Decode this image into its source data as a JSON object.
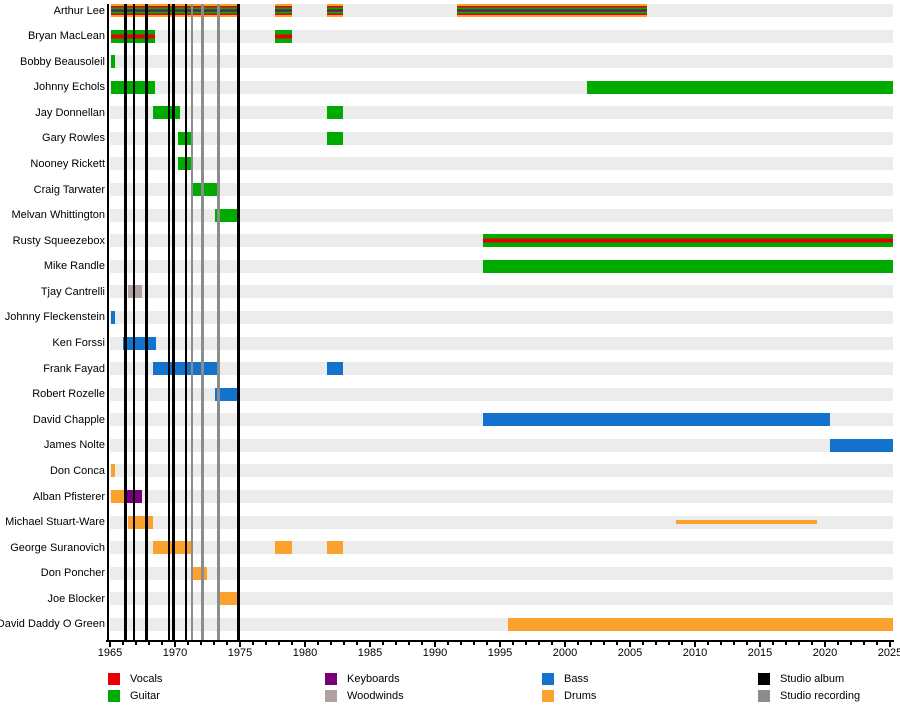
{
  "chart_data": {
    "type": "timeline",
    "description": "Band members timeline with roles as colored bars and release lines",
    "x_axis": {
      "min": 1965,
      "max": 2025.2,
      "major_tick_step": 5,
      "minor_tick_step": 1,
      "tick_labels": [
        "1965",
        "1970",
        "1975",
        "1980",
        "1985",
        "1990",
        "1995",
        "2000",
        "2005",
        "2010",
        "2015",
        "2020",
        "2025"
      ]
    },
    "members": [
      {
        "name": "Arthur Lee",
        "bars": [
          {
            "from": 1965.05,
            "to": 1975.0,
            "roles": [
              "drums",
              "vocals",
              "guitar",
              "keyboards"
            ]
          },
          {
            "from": 1977.7,
            "to": 1979.0,
            "roles": [
              "drums",
              "vocals",
              "guitar",
              "keyboards"
            ]
          },
          {
            "from": 1981.7,
            "to": 1982.9,
            "roles": [
              "drums",
              "vocals",
              "guitar",
              "keyboards"
            ]
          },
          {
            "from": 1991.7,
            "to": 2006.3,
            "roles": [
              "drums",
              "vocals",
              "guitar",
              "keyboards"
            ]
          }
        ]
      },
      {
        "name": "Bryan MacLean",
        "bars": [
          {
            "from": 1965.05,
            "to": 1968.5,
            "roles": [
              "guitar",
              "vocals"
            ]
          },
          {
            "from": 1977.7,
            "to": 1979.0,
            "roles": [
              "guitar",
              "vocals"
            ]
          }
        ]
      },
      {
        "name": "Bobby Beausoleil",
        "bars": [
          {
            "from": 1965.05,
            "to": 1965.35,
            "roles": [
              "guitar"
            ]
          }
        ]
      },
      {
        "name": "Johnny Echols",
        "bars": [
          {
            "from": 1965.05,
            "to": 1968.5,
            "roles": [
              "guitar"
            ]
          },
          {
            "from": 2001.7,
            "to": 2025.2,
            "roles": [
              "guitar"
            ]
          }
        ]
      },
      {
        "name": "Jay Donnellan",
        "bars": [
          {
            "from": 1968.3,
            "to": 1970.4,
            "roles": [
              "guitar"
            ]
          },
          {
            "from": 1981.7,
            "to": 1982.9,
            "roles": [
              "guitar"
            ]
          }
        ]
      },
      {
        "name": "Gary Rowles",
        "bars": [
          {
            "from": 1970.2,
            "to": 1971.35,
            "roles": [
              "guitar"
            ]
          },
          {
            "from": 1981.7,
            "to": 1982.9,
            "roles": [
              "guitar"
            ]
          }
        ]
      },
      {
        "name": "Nooney Rickett",
        "bars": [
          {
            "from": 1970.2,
            "to": 1971.35,
            "roles": [
              "guitar"
            ]
          }
        ]
      },
      {
        "name": "Craig Tarwater",
        "bars": [
          {
            "from": 1971.2,
            "to": 1973.2,
            "roles": [
              "guitar"
            ]
          }
        ]
      },
      {
        "name": "Melvan Whittington",
        "bars": [
          {
            "from": 1973.1,
            "to": 1975.0,
            "roles": [
              "guitar"
            ]
          }
        ]
      },
      {
        "name": "Rusty Squeezebox",
        "bars": [
          {
            "from": 1993.7,
            "to": 2025.2,
            "roles": [
              "guitar",
              "vocals"
            ]
          }
        ]
      },
      {
        "name": "Mike Randle",
        "bars": [
          {
            "from": 1993.7,
            "to": 2025.2,
            "roles": [
              "guitar"
            ]
          }
        ]
      },
      {
        "name": "Tjay Cantrelli",
        "bars": [
          {
            "from": 1966.4,
            "to": 1967.5,
            "roles": [
              "woodwinds"
            ]
          }
        ]
      },
      {
        "name": "Johnny Fleckenstein",
        "bars": [
          {
            "from": 1965.05,
            "to": 1965.35,
            "roles": [
              "bass"
            ]
          }
        ]
      },
      {
        "name": "Ken Forssi",
        "bars": [
          {
            "from": 1966.0,
            "to": 1968.5,
            "roles": [
              "bass"
            ]
          }
        ]
      },
      {
        "name": "Frank Fayad",
        "bars": [
          {
            "from": 1968.3,
            "to": 1973.2,
            "roles": [
              "bass"
            ]
          },
          {
            "from": 1981.7,
            "to": 1982.9,
            "roles": [
              "bass"
            ]
          }
        ]
      },
      {
        "name": "Robert Rozelle",
        "bars": [
          {
            "from": 1973.1,
            "to": 1974.85,
            "roles": [
              "bass"
            ]
          }
        ]
      },
      {
        "name": "David Chapple",
        "bars": [
          {
            "from": 1993.7,
            "to": 2020.4,
            "roles": [
              "bass"
            ]
          }
        ]
      },
      {
        "name": "James Nolte",
        "bars": [
          {
            "from": 2020.4,
            "to": 2025.2,
            "roles": [
              "bass"
            ]
          }
        ]
      },
      {
        "name": "Don Conca",
        "bars": [
          {
            "from": 1965.05,
            "to": 1965.35,
            "roles": [
              "drums"
            ]
          }
        ]
      },
      {
        "name": "Alban Pfisterer",
        "bars": [
          {
            "from": 1965.05,
            "to": 1966.3,
            "roles": [
              "drums"
            ]
          },
          {
            "from": 1966.3,
            "to": 1967.5,
            "roles": [
              "keyboards"
            ]
          }
        ]
      },
      {
        "name": "Michael Stuart-Ware",
        "bars": [
          {
            "from": 1966.4,
            "to": 1968.3,
            "roles": [
              "drums"
            ]
          },
          {
            "from": 2008.5,
            "to": 2019.4,
            "roles": [
              "drums"
            ],
            "style": "line"
          }
        ]
      },
      {
        "name": "George Suranovich",
        "bars": [
          {
            "from": 1968.3,
            "to": 1971.35,
            "roles": [
              "drums"
            ]
          },
          {
            "from": 1977.7,
            "to": 1979.0,
            "roles": [
              "drums"
            ]
          },
          {
            "from": 1981.7,
            "to": 1982.9,
            "roles": [
              "drums"
            ]
          }
        ]
      },
      {
        "name": "Don Poncher",
        "bars": [
          {
            "from": 1971.2,
            "to": 1972.5,
            "roles": [
              "drums"
            ]
          }
        ]
      },
      {
        "name": "Joe Blocker",
        "bars": [
          {
            "from": 1973.2,
            "to": 1974.85,
            "roles": [
              "drums"
            ]
          }
        ]
      },
      {
        "name": "David Daddy O Green",
        "bars": [
          {
            "from": 1995.6,
            "to": 2025.2,
            "roles": [
              "drums"
            ]
          }
        ]
      }
    ],
    "events": {
      "studio_albums": [
        1966.2,
        1966.85,
        1967.8,
        1969.55,
        1969.9,
        1970.85,
        1974.9
      ],
      "studio_recordings": [
        1971.3,
        1972.1,
        1973.35
      ]
    },
    "legend": [
      {
        "label": "Vocals",
        "key": "vocals"
      },
      {
        "label": "Guitar",
        "key": "guitar"
      },
      {
        "label": "Keyboards",
        "key": "keyboards"
      },
      {
        "label": "Woodwinds",
        "key": "woodwinds"
      },
      {
        "label": "Bass",
        "key": "bass"
      },
      {
        "label": "Drums",
        "key": "drums"
      },
      {
        "label": "Studio album",
        "key": "studio_album"
      },
      {
        "label": "Studio recording",
        "key": "studio_recording"
      }
    ]
  },
  "colors": {
    "vocals": "#e80000",
    "guitar": "#00ab00",
    "keyboards": "#780078",
    "woodwinds": "#b3a0a0",
    "bass": "#1272cc",
    "drums": "#faa22b",
    "studio_album": "#000000",
    "studio_recording": "#8c8c8c",
    "row_band": "#ececec",
    "axis": "#000000",
    "background": "#ffffff"
  }
}
